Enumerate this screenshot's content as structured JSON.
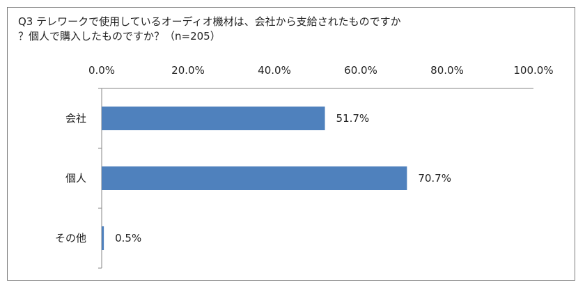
{
  "chart_data": {
    "type": "bar",
    "orientation": "horizontal",
    "title_line1": "Q3 テレワークで使用しているオーディオ機材は、会社から支給されたものですか",
    "title_line2": "？個人で購入したものですか？（n=205）",
    "categories": [
      "会社",
      "個人",
      "その他"
    ],
    "values": [
      51.7,
      70.7,
      0.5
    ],
    "value_labels": [
      "51.7%",
      "70.7%",
      "0.5%"
    ],
    "xlim": [
      0,
      100
    ],
    "x_ticks": [
      0,
      20,
      40,
      60,
      80,
      100
    ],
    "x_tick_labels": [
      "0.0%",
      "20.0%",
      "40.0%",
      "60.0%",
      "80.0%",
      "100.0%"
    ],
    "x_axis_position": "top",
    "grid": false,
    "bar_color": "#4f81bd"
  }
}
